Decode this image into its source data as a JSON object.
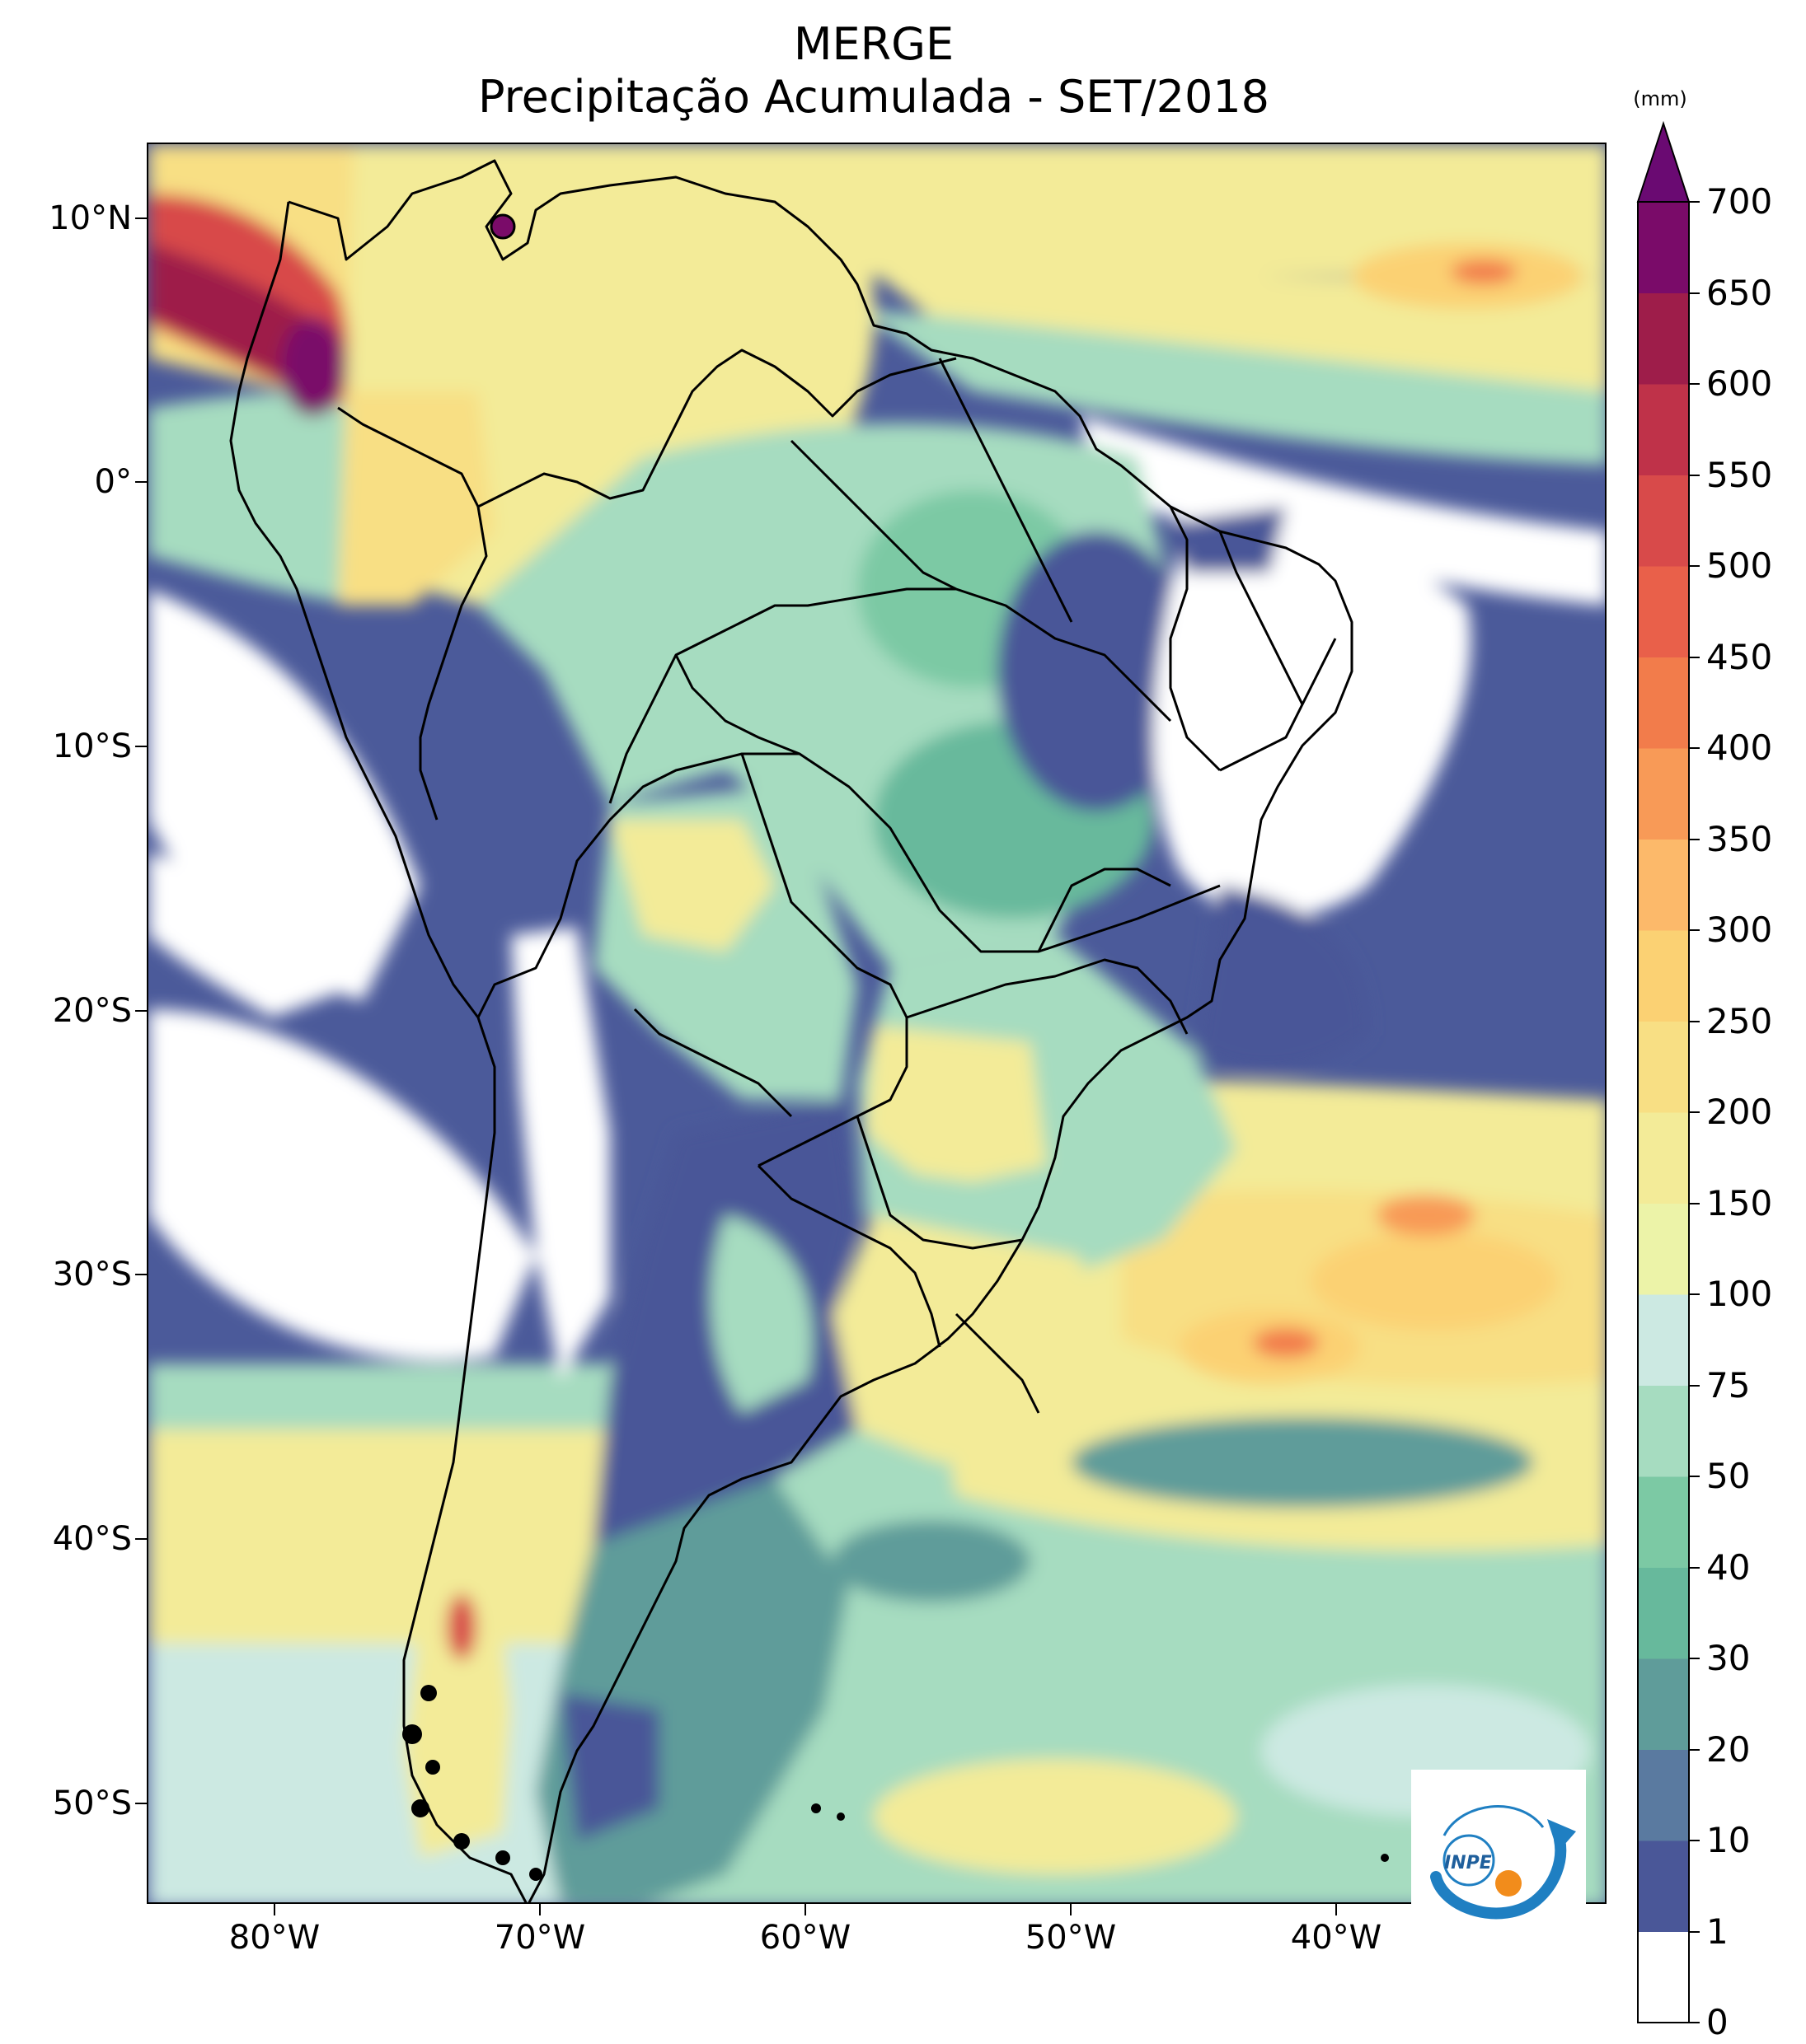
{
  "title": {
    "line1": "MERGE",
    "line2": "Precipitação Acumulada - SET/2018"
  },
  "colorbar": {
    "unit": "(mm)",
    "levels": [
      "0",
      "1",
      "10",
      "20",
      "30",
      "40",
      "50",
      "75",
      "100",
      "150",
      "200",
      "250",
      "300",
      "350",
      "400",
      "450",
      "500",
      "550",
      "600",
      "650",
      "700"
    ],
    "colors": [
      "#ffffff",
      "#4a5798",
      "#5a7aa0",
      "#5f9c9a",
      "#67b99c",
      "#7cc9a4",
      "#a6dcc0",
      "#cce9e2",
      "#ecf3a8",
      "#f3eb98",
      "#f8df84",
      "#fbd173",
      "#fcb96a",
      "#f89a57",
      "#f27c4b",
      "#e9604a",
      "#d84a4a",
      "#bf3249",
      "#9e1d4a",
      "#7a0b69"
    ],
    "extend_color": "#6a0a72"
  },
  "axes": {
    "lat_labels": [
      "10°N",
      "0°",
      "10°S",
      "20°S",
      "30°S",
      "40°S",
      "50°S"
    ],
    "lon_labels": [
      "80°W",
      "70°W",
      "60°W",
      "50°W",
      "40°W"
    ]
  },
  "logo": {
    "text": "INPE",
    "primary_color": "#1f7fc2",
    "accent_color": "#f28c1b"
  },
  "colors": {
    "coastline": "#000000",
    "frame": "#000000"
  }
}
